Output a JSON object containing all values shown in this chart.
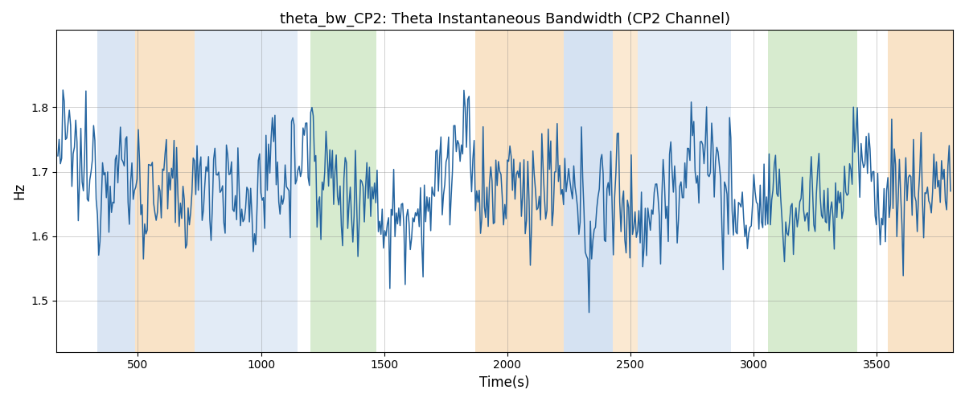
{
  "title": "theta_bw_CP2: Theta Instantaneous Bandwidth (CP2 Channel)",
  "xlabel": "Time(s)",
  "ylabel": "Hz",
  "ylim": [
    1.42,
    1.92
  ],
  "xlim": [
    170,
    3810
  ],
  "line_color": "#2565a0",
  "line_width": 1.1,
  "bg_regions": [
    {
      "xmin": 335,
      "xmax": 490,
      "color": "#adc6e6",
      "alpha": 0.45
    },
    {
      "xmin": 490,
      "xmax": 730,
      "color": "#f5c890",
      "alpha": 0.5
    },
    {
      "xmin": 730,
      "xmax": 1150,
      "color": "#adc6e6",
      "alpha": 0.35
    },
    {
      "xmin": 1200,
      "xmax": 1470,
      "color": "#b0d8a0",
      "alpha": 0.5
    },
    {
      "xmin": 1870,
      "xmax": 2230,
      "color": "#f5c890",
      "alpha": 0.5
    },
    {
      "xmin": 2230,
      "xmax": 2430,
      "color": "#adc6e6",
      "alpha": 0.5
    },
    {
      "xmin": 2430,
      "xmax": 2530,
      "color": "#f5c890",
      "alpha": 0.4
    },
    {
      "xmin": 2530,
      "xmax": 2910,
      "color": "#adc6e6",
      "alpha": 0.35
    },
    {
      "xmin": 3060,
      "xmax": 3420,
      "color": "#b0d8a0",
      "alpha": 0.5
    },
    {
      "xmin": 3545,
      "xmax": 3810,
      "color": "#f5c890",
      "alpha": 0.5
    }
  ],
  "random_seed": 12345,
  "n_points": 700,
  "x_start": 175,
  "x_end": 3800
}
